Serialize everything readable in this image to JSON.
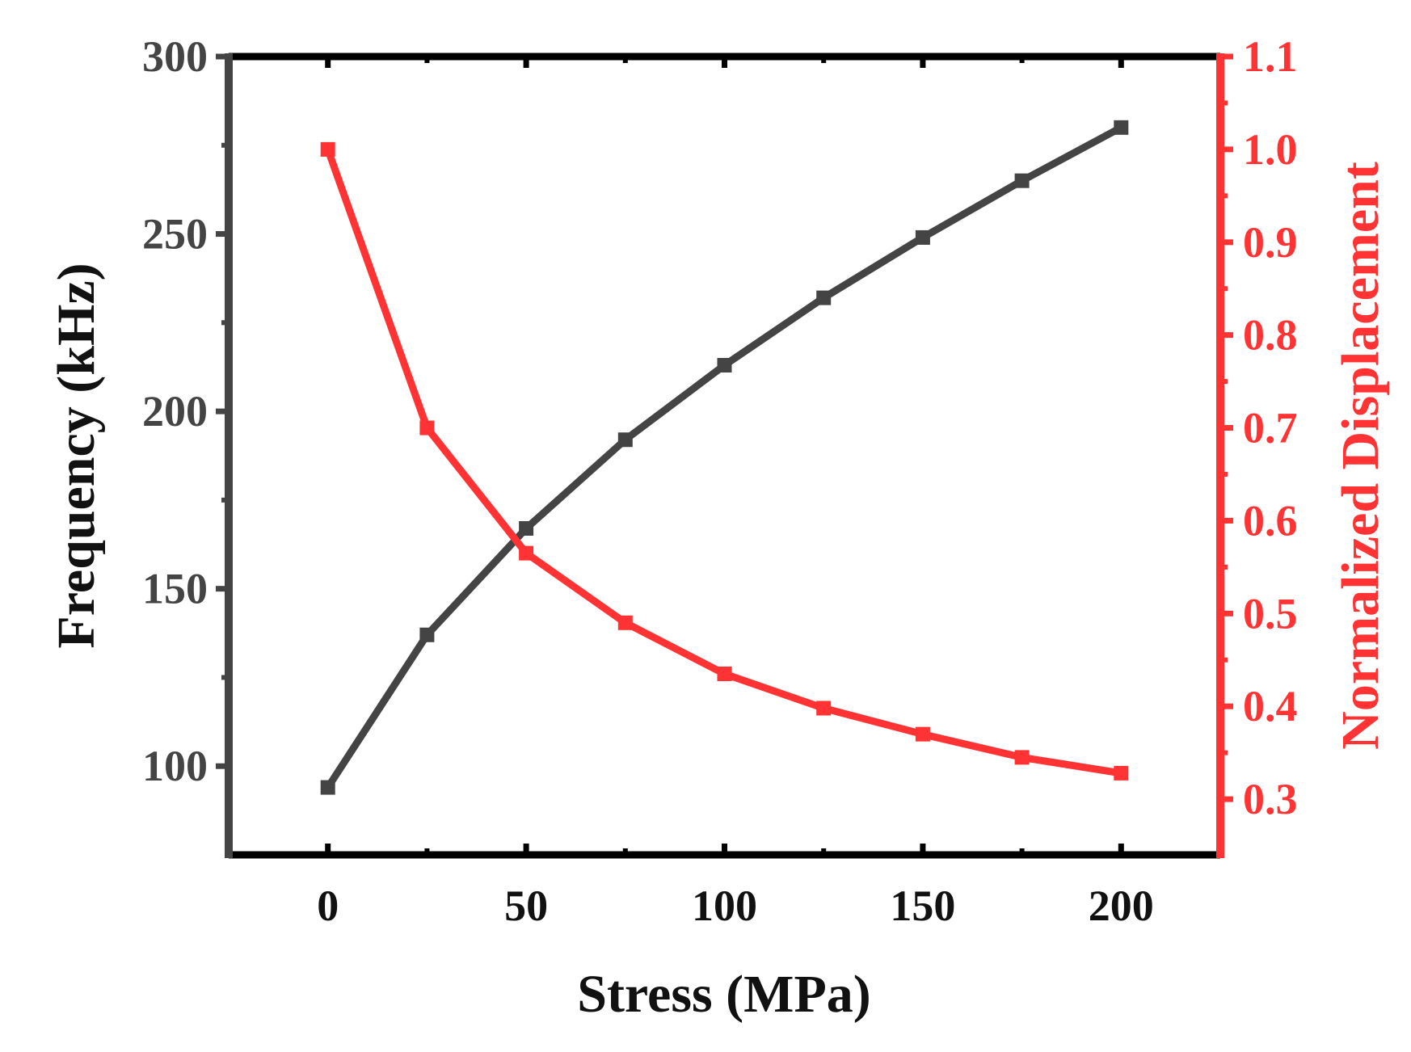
{
  "chart_data": {
    "type": "line",
    "title": "",
    "xlabel": "Stress (MPa)",
    "ylabel": "Frequency (kHz)",
    "y2label": "Normalized Displacement",
    "xlim": [
      -25,
      225
    ],
    "ylim": [
      75,
      300
    ],
    "y2lim": [
      0.24,
      1.1
    ],
    "x_ticks": [
      0,
      50,
      100,
      150,
      200
    ],
    "x_tick_labels": [
      "0",
      "50",
      "100",
      "150",
      "200"
    ],
    "y_ticks": [
      100,
      150,
      200,
      250,
      300
    ],
    "y_tick_labels": [
      "100",
      "150",
      "200",
      "250",
      "300"
    ],
    "y2_ticks": [
      0.3,
      0.4,
      0.5,
      0.6,
      0.7,
      0.8,
      0.9,
      1.0,
      1.1
    ],
    "y2_tick_labels": [
      "0.3",
      "0.4",
      "0.5",
      "0.6",
      "0.7",
      "0.8",
      "0.9",
      "1.0",
      "1.1"
    ],
    "x": [
      0,
      25,
      50,
      75,
      100,
      125,
      150,
      175,
      200
    ],
    "series": [
      {
        "name": "Frequency (kHz)",
        "axis": "left",
        "color": "#444444",
        "values": [
          94,
          137,
          167,
          192,
          213,
          232,
          249,
          265,
          280
        ]
      },
      {
        "name": "Normalized Displacement",
        "axis": "right",
        "color": "#ff3333",
        "values": [
          1.0,
          0.7,
          0.565,
          0.49,
          0.435,
          0.398,
          0.37,
          0.345,
          0.328
        ]
      }
    ],
    "grid": false,
    "legend": "none",
    "colors": {
      "frame": "#000000",
      "left_axis": "#444444",
      "right_axis": "#ff3333",
      "x_tick_labels": "#111111",
      "xlabel": "#111111",
      "ylabel": "#111111"
    }
  }
}
